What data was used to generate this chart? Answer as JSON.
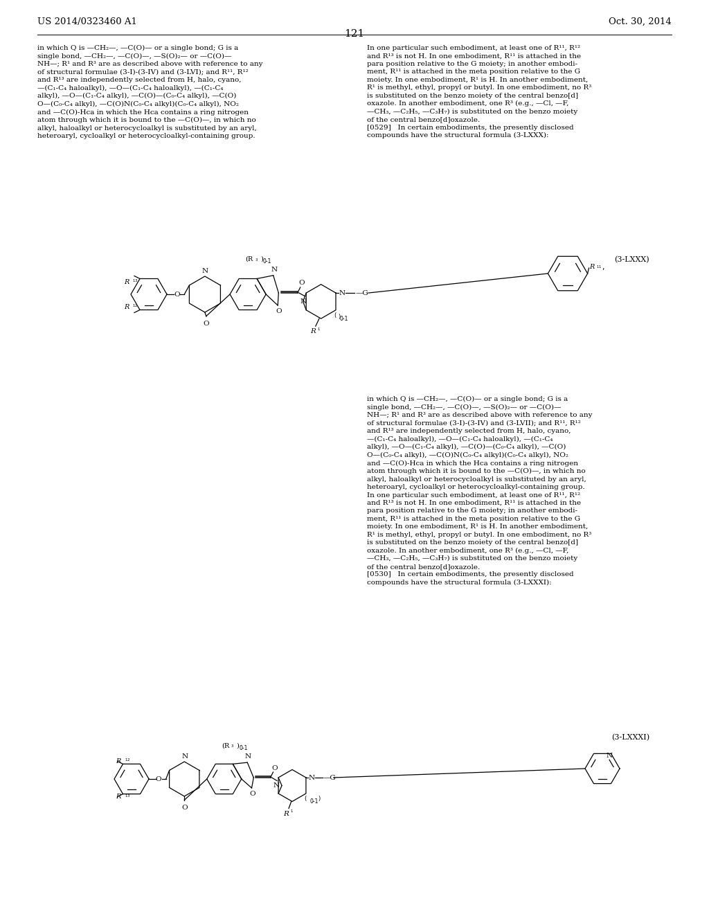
{
  "bg_color": "#ffffff",
  "header_left": "US 2014/0323460 A1",
  "header_right": "Oct. 30, 2014",
  "page_number": "121",
  "text_left_col_top": "in which Q is —CH₂—, —C(O)— or a single bond; G is a\nsingle bond, —CH₂—, —C(O)—, —S(O)₂— or —C(O)—\nNH—; R¹ and R³ are as described above with reference to any\nof structural formulae (3-I)-(3-IV) and (3-LVI); and R¹¹, R¹²\nand R¹³ are independently selected from H, halo, cyano,\n—(C₁-C₄ haloalkyl), —O—(C₁-C₄ haloalkyl), —(C₁-C₄\nalkyl), —O—(C₁-C₄ alkyl), —C(O)—(C₀-C₄ alkyl), —C(O)\nO—(C₀-C₄ alkyl), —C(O)N(C₀-C₄ alkyl)(C₀-C₄ alkyl), NO₂\nand —C(O)-Hca in which the Hca contains a ring nitrogen\natom through which it is bound to the —C(O)—, in which no\nalkyl, haloalkyl or heterocycloalkyl is substituted by an aryl,\nheteroaryl, cycloalkyl or heterocycloalkyl-containing group.",
  "text_right_col_top": "In one particular such embodiment, at least one of R¹¹, R¹²\nand R¹³ is not H. In one embodiment, R¹¹ is attached in the\npara position relative to the G moiety; in another embodi-\nment, R¹¹ is attached in the meta position relative to the G\nmoiety. In one embodiment, R¹ is H. In another embodiment,\nR¹ is methyl, ethyl, propyl or butyl. In one embodiment, no R³\nis substituted on the benzo moiety of the central benzo[d]\noxazole. In another embodiment, one R³ (e.g., —Cl, —F,\n—CH₃, —C₂H₅, —C₃H₇) is substituted on the benzo moiety\nof the central benzo[d]oxazole.\n[0529]   In certain embodiments, the presently disclosed\ncompounds have the structural formula (3-LXXX):",
  "formula_label_1": "(3-LXXX)",
  "text_right_col_mid": "in which Q is —CH₂—, —C(O)— or a single bond; G is a\nsingle bond, —CH₂—, —C(O)—, —S(O)₂— or —C(O)—\nNH—; R¹ and R³ are as described above with reference to any\nof structural formulae (3-I)-(3-IV) and (3-LVII); and R¹¹, R¹²\nand R¹³ are independently selected from H, halo, cyano,\n—(C₁-C₄ haloalkyl), —O—(C₁-C₄ haloalkyl), —(C₁-C₄\nalkyl), —O—(C₁-C₄ alkyl), —C(O)—(C₀-C₄ alkyl), —C(O)\nO—(C₀-C₄ alkyl), —C(O)N(C₀-C₄ alkyl)(C₀-C₄ alkyl), NO₂\nand —C(O)-Hca in which the Hca contains a ring nitrogen\natom through which it is bound to the —C(O)—, in which no\nalkyl, haloalkyl or heterocycloalkyl is substituted by an aryl,\nheteroaryl, cycloalkyl or heterocycloalkyl-containing group.\nIn one particular such embodiment, at least one of R¹¹, R¹²\nand R¹³ is not H. In one embodiment, R¹¹ is attached in the\npara position relative to the G moiety; in another embodi-\nment, R¹¹ is attached in the meta position relative to the G\nmoiety. In one embodiment, R¹ is H. In another embodiment,\nR¹ is methyl, ethyl, propyl or butyl. In one embodiment, no R³\nis substituted on the benzo moiety of the central benzo[d]\noxazole. In another embodiment, one R³ (e.g., —Cl, —F,\n—CH₃, —C₂H₅, —C₃H₇) is substituted on the benzo moiety\nof the central benzo[d]oxazole.\n[0530]   In certain embodiments, the presently disclosed\ncompounds have the structural formula (3-LXXXI):",
  "formula_label_2": "(3-LXXXI)"
}
